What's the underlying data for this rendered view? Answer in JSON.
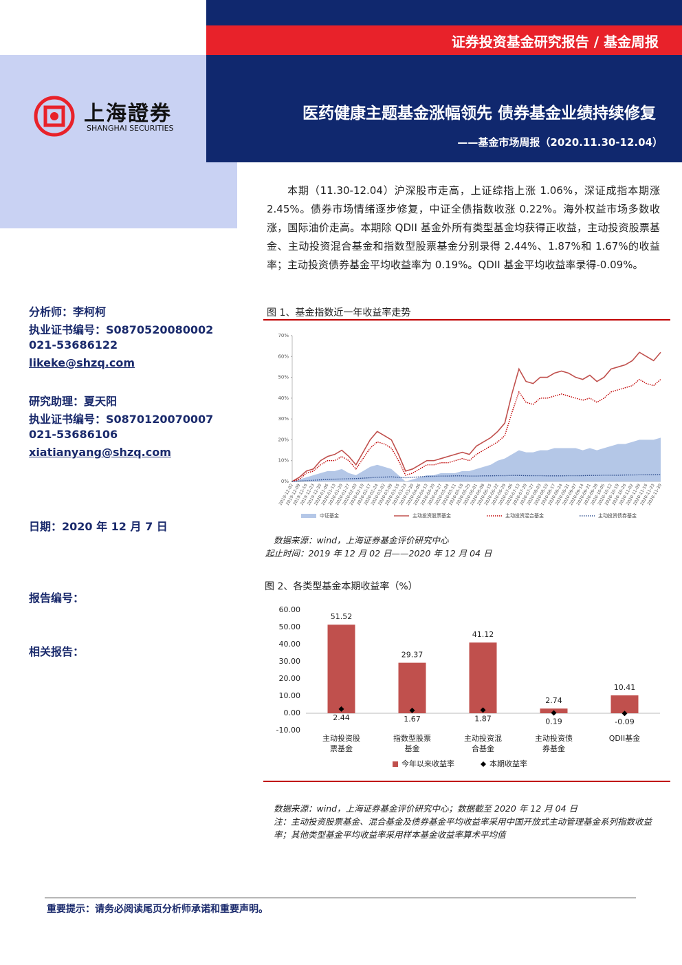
{
  "header": {
    "category": "证券投资基金研究报告 / 基金周报",
    "title": "医药健康主题基金涨幅领先 债券基金业绩持续修复",
    "subtitle": "——基金市场周报（2020.11.30-12.04）",
    "logo_cn": "上海證券",
    "logo_en": "SHANGHAI SECURITIES"
  },
  "sidebar": {
    "analyst": "分析师：李柯柯",
    "cert1": "执业证书编号：S0870520080002",
    "phone1": "021-53686122",
    "email1": "likeke@shzq.com",
    "assistant": "研究助理：夏天阳",
    "cert2": "执业证书编号：S0870120070007",
    "phone2": "021-53686106",
    "email2": "xiatianyang@shzq.com",
    "date": "日期：2020 年 12 月 7 日",
    "report_no": "报告编号：",
    "related": "相关报告："
  },
  "summary": "本期（11.30-12.04）沪深股市走高，上证综指上涨 1.06%，深证成指本期涨 2.45%。债券市场情绪逐步修复，中证全债指数收涨 0.22%。海外权益市场多数收涨，国际油价走高。本期除 QDII 基金外所有类型基金均获得正收益，主动投资股票基金、主动投资混合基金和指数型股票基金分别录得 2.44%、1.87%和 1.67%的收益率；主动投资债券基金平均收益率为 0.19%。QDII 基金平均收益率录得-0.09%。",
  "chart_data": [
    {
      "type": "line",
      "title": "图 1、基金指数近一年收益率走势",
      "x": [
        "2019-12-02",
        "2019-12-09",
        "2019-12-16",
        "2019-12-23",
        "2019-12-30",
        "2020-01-06",
        "2020-01-13",
        "2020-01-20",
        "2020-01-27",
        "2020-02-03",
        "2020-02-10",
        "2020-02-17",
        "2020-02-24",
        "2020-03-02",
        "2020-03-09",
        "2020-03-16",
        "2020-03-23",
        "2020-03-30",
        "2020-04-06",
        "2020-04-13",
        "2020-04-20",
        "2020-04-27",
        "2020-05-04",
        "2020-05-11",
        "2020-05-18",
        "2020-05-25",
        "2020-06-01",
        "2020-06-08",
        "2020-06-15",
        "2020-06-22",
        "2020-06-29",
        "2020-07-06",
        "2020-07-13",
        "2020-07-20",
        "2020-07-27",
        "2020-08-03",
        "2020-08-10",
        "2020-08-17",
        "2020-08-24",
        "2020-08-31",
        "2020-09-07",
        "2020-09-14",
        "2020-09-21",
        "2020-09-28",
        "2020-10-05",
        "2020-10-12",
        "2020-10-19",
        "2020-10-26",
        "2020-11-02",
        "2020-11-09",
        "2020-11-16",
        "2020-11-23",
        "2020-11-30"
      ],
      "series": [
        {
          "name": "中证基金",
          "color": "#b4c7e7",
          "style": "area",
          "values": [
            0,
            1,
            2,
            3,
            4,
            5,
            5,
            6,
            4,
            3,
            5,
            7,
            8,
            7,
            6,
            3,
            0,
            1,
            2,
            3,
            3,
            4,
            4,
            4,
            5,
            5,
            6,
            7,
            8,
            10,
            11,
            13,
            15,
            14,
            14,
            15,
            15,
            16,
            16,
            16,
            16,
            15,
            16,
            15,
            16,
            17,
            18,
            18,
            19,
            20,
            20,
            20,
            21
          ]
        },
        {
          "name": "主动投资股票基金",
          "color": "#c0504d",
          "style": "solid",
          "values": [
            0,
            2,
            5,
            6,
            10,
            12,
            13,
            15,
            12,
            8,
            14,
            20,
            24,
            22,
            20,
            13,
            5,
            6,
            8,
            10,
            10,
            11,
            12,
            13,
            14,
            13,
            17,
            19,
            21,
            24,
            28,
            42,
            54,
            48,
            47,
            50,
            50,
            52,
            53,
            52,
            50,
            49,
            51,
            48,
            50,
            54,
            55,
            56,
            58,
            62,
            60,
            58,
            62
          ]
        },
        {
          "name": "主动投资混合基金",
          "color": "#c00000",
          "style": "dotted",
          "values": [
            0,
            1,
            4,
            5,
            8,
            10,
            10,
            12,
            10,
            6,
            11,
            16,
            19,
            18,
            16,
            10,
            3,
            4,
            6,
            8,
            8,
            9,
            9,
            10,
            11,
            10,
            13,
            15,
            17,
            19,
            22,
            33,
            43,
            38,
            37,
            40,
            40,
            41,
            42,
            41,
            40,
            39,
            40,
            38,
            40,
            43,
            44,
            45,
            46,
            49,
            47,
            46,
            49
          ]
        },
        {
          "name": "主动投资债券基金",
          "color": "#2f4f8f",
          "style": "dotted",
          "values": [
            0,
            0.2,
            0.4,
            0.6,
            0.8,
            1,
            1.1,
            1.2,
            1.3,
            1.4,
            1.6,
            1.8,
            2,
            2.1,
            2.2,
            2,
            1.8,
            2,
            2.2,
            2.4,
            2.5,
            2.6,
            2.6,
            2.7,
            2.7,
            2.6,
            2.6,
            2.7,
            2.7,
            2.8,
            2.8,
            2.9,
            2.9,
            2.8,
            2.8,
            2.8,
            2.7,
            2.7,
            2.7,
            2.8,
            2.8,
            2.8,
            2.9,
            2.9,
            3,
            3,
            3,
            3.1,
            3.1,
            3.2,
            3.2,
            3.2,
            3.3
          ]
        }
      ],
      "ylim": [
        0,
        70
      ],
      "yticks": [
        {
          "value": 0,
          "label": "0%"
        },
        {
          "value": 10,
          "label": "10%"
        },
        {
          "value": 20,
          "label": "20%"
        },
        {
          "value": 30,
          "label": "30%"
        },
        {
          "value": 40,
          "label": "40%"
        },
        {
          "value": 50,
          "label": "50%"
        },
        {
          "value": 60,
          "label": "60%"
        },
        {
          "value": 70,
          "label": "70%"
        }
      ],
      "source": "数据来源：wind，上海证券基金评价研究中心",
      "period": "起止时间：2019 年 12 月 02 日——2020 年 12 月 04 日"
    },
    {
      "type": "bar",
      "title": "图 2、各类型基金本期收益率（%）",
      "categories": [
        "主动投资股票基金",
        "指数型股票基金",
        "主动投资混合基金",
        "主动投资债券基金",
        "QDII基金"
      ],
      "series": [
        {
          "name": "今年以来收益率",
          "color": "#c0504d",
          "kind": "bar",
          "values": [
            51.52,
            29.37,
            41.12,
            2.74,
            10.41
          ]
        },
        {
          "name": "本期收益率",
          "color": "#000000",
          "kind": "marker",
          "values": [
            2.44,
            1.67,
            1.87,
            0.19,
            -0.09
          ]
        }
      ],
      "ylim": [
        -10,
        60
      ],
      "yticks": [
        {
          "value": -10,
          "label": "-10.00"
        },
        {
          "value": 0,
          "label": "0.00"
        },
        {
          "value": 10,
          "label": "10.00"
        },
        {
          "value": 20,
          "label": "20.00"
        },
        {
          "value": 30,
          "label": "30.00"
        },
        {
          "value": 40,
          "label": "40.00"
        },
        {
          "value": 50,
          "label": "50.00"
        },
        {
          "value": 60,
          "label": "60.00"
        }
      ],
      "source": "数据来源：wind，上海证券基金评价研究中心；数据截至 2020 年 12 月 04 日",
      "note": "注：主动投资股票基金、混合基金及债券基金平均收益率采用中国开放式主动管理基金系列指数收益率；其他类型基金平均收益率采用样本基金收益率算术平均值"
    }
  ],
  "footer": "重要提示：请务必阅读尾页分析师承诺和重要声明。"
}
